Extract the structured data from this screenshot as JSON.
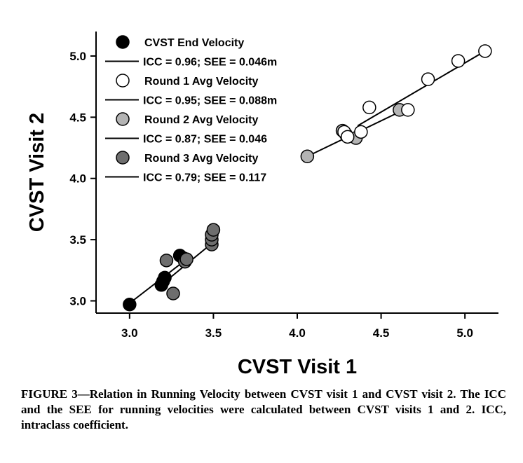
{
  "caption": "FIGURE 3—Relation in Running Velocity between CVST visit 1 and CVST visit 2. The ICC and the SEE for running velocities were calculated between CVST visits 1 and 2. ICC, intraclass coefficient.",
  "chart_data": {
    "type": "scatter",
    "title": "",
    "xlabel": "CVST Visit 1",
    "ylabel": "CVST Visit 2",
    "xlim": [
      2.8,
      5.2
    ],
    "ylim": [
      2.9,
      5.2
    ],
    "xticks": [
      "3.0",
      "3.5",
      "4.0",
      "4.5",
      "5.0"
    ],
    "yticks": [
      "3.0",
      "3.5",
      "4.0",
      "4.5",
      "5.0"
    ],
    "grid": false,
    "legend_position": "top-left",
    "series": [
      {
        "name": "CVST End Velocity",
        "fit_label": "ICC = 0.96; SEE = 0.046m",
        "marker_fill": "#000000",
        "x": [
          3.0,
          3.19,
          3.2,
          3.21,
          3.3,
          3.32
        ],
        "y": [
          2.97,
          3.13,
          3.16,
          3.19,
          3.37,
          3.35
        ],
        "fit": [
          [
            2.99,
            2.97
          ],
          [
            3.34,
            3.34
          ]
        ]
      },
      {
        "name": "Round 1 Avg Velocity",
        "fit_label": "ICC = 0.95; SEE = 0.088m",
        "marker_fill": "#ffffff",
        "x": [
          4.28,
          4.3,
          4.38,
          4.43,
          4.66,
          4.78,
          4.96,
          5.12
        ],
        "y": [
          4.38,
          4.34,
          4.38,
          4.58,
          4.56,
          4.81,
          4.96,
          5.04
        ],
        "fit": [
          [
            4.36,
            4.43
          ],
          [
            5.12,
            5.04
          ]
        ]
      },
      {
        "name": "Round 2 Avg Velocity",
        "fit_label": "ICC = 0.87; SEE = 0.046",
        "marker_fill": "#b4b4b4",
        "x": [
          4.06,
          4.27,
          4.29,
          4.35,
          4.61
        ],
        "y": [
          4.18,
          4.39,
          4.36,
          4.33,
          4.56
        ],
        "fit": [
          [
            4.06,
            4.18
          ],
          [
            4.62,
            4.55
          ]
        ]
      },
      {
        "name": "Round 3 Avg Velocity",
        "fit_label": "ICC = 0.79; SEE = 0.117",
        "marker_fill": "#6e6e6e",
        "x": [
          3.22,
          3.26,
          3.33,
          3.34,
          3.49,
          3.49,
          3.49,
          3.5
        ],
        "y": [
          3.33,
          3.06,
          3.32,
          3.34,
          3.46,
          3.5,
          3.54,
          3.58
        ],
        "fit": [
          [
            3.18,
            3.12
          ],
          [
            3.5,
            3.48
          ]
        ]
      }
    ]
  }
}
